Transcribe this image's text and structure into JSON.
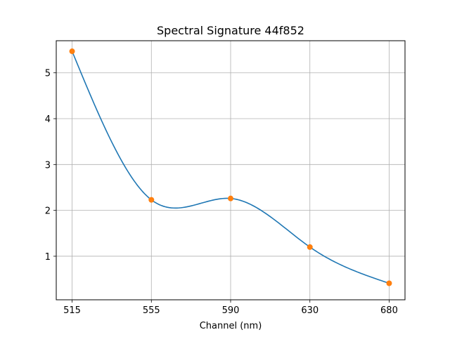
{
  "chart_data": {
    "type": "line",
    "title": "Spectral Signature 44f852",
    "xlabel": "Channel (nm)",
    "ylabel": "",
    "x_tick_labels": [
      "515",
      "555",
      "590",
      "630",
      "680"
    ],
    "y_ticks": [
      1,
      2,
      3,
      4,
      5
    ],
    "xlim": [
      -0.2,
      4.2
    ],
    "ylim": [
      0.05,
      5.7
    ],
    "grid": true,
    "series": [
      {
        "type": "curve",
        "color": "#1f77b4",
        "points": [
          {
            "x": 0,
            "y": 5.47
          },
          {
            "x": 1,
            "y": 2.23
          },
          {
            "x": 2,
            "y": 2.26
          },
          {
            "x": 3,
            "y": 1.2
          },
          {
            "x": 4,
            "y": 0.41
          }
        ]
      },
      {
        "type": "markers",
        "color": "#ff7f0e",
        "points": [
          {
            "x": 0,
            "y": 5.47
          },
          {
            "x": 1,
            "y": 2.23
          },
          {
            "x": 2,
            "y": 2.26
          },
          {
            "x": 3,
            "y": 1.2
          },
          {
            "x": 4,
            "y": 0.41
          }
        ]
      }
    ]
  }
}
